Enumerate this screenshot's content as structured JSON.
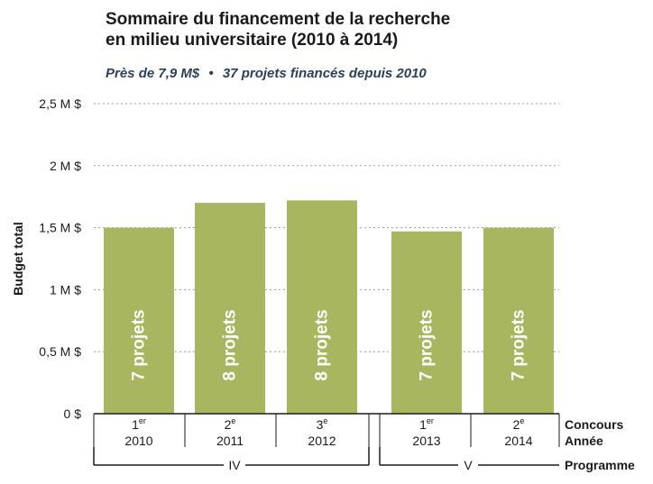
{
  "chart_data": {
    "type": "bar",
    "title": [
      "Sommaire du financement de la recherche",
      "en milieu universitaire (2010 à 2014)"
    ],
    "subtitle": {
      "left": "Près de 7,9 M$",
      "separator": "•",
      "right": "37 projets financés depuis 2010"
    },
    "ylabel": "Budget total",
    "ylim": [
      0,
      2.5
    ],
    "yticks": [
      {
        "value": 0,
        "label": "0 $"
      },
      {
        "value": 0.5,
        "label": "0,5 M $"
      },
      {
        "value": 1,
        "label": "1 M $"
      },
      {
        "value": 1.5,
        "label": "1,5 M $"
      },
      {
        "value": 2,
        "label": "2 M $"
      },
      {
        "value": 2.5,
        "label": "2,5 M $"
      }
    ],
    "grid": true,
    "bar_color": "#a9b660",
    "bar_label_color": "#ffffff",
    "bars": [
      {
        "concours_num": "1",
        "concours_sup": "er",
        "year": "2010",
        "value": 1.5,
        "label": "7 projets"
      },
      {
        "concours_num": "2",
        "concours_sup": "e",
        "year": "2011",
        "value": 1.7,
        "label": "8 projets"
      },
      {
        "concours_num": "3",
        "concours_sup": "e",
        "year": "2012",
        "value": 1.72,
        "label": "8 projets"
      },
      {
        "concours_num": "1",
        "concours_sup": "er",
        "year": "2013",
        "value": 1.47,
        "label": "7 projets"
      },
      {
        "concours_num": "2",
        "concours_sup": "e",
        "year": "2014",
        "value": 1.5,
        "label": "7 projets"
      }
    ],
    "programmes": [
      {
        "label": "IV",
        "bars": [
          0,
          1,
          2
        ]
      },
      {
        "label": "V",
        "bars": [
          3,
          4
        ]
      }
    ],
    "row_labels": {
      "concours": "Concours",
      "annee": "Année",
      "programme": "Programme"
    }
  }
}
